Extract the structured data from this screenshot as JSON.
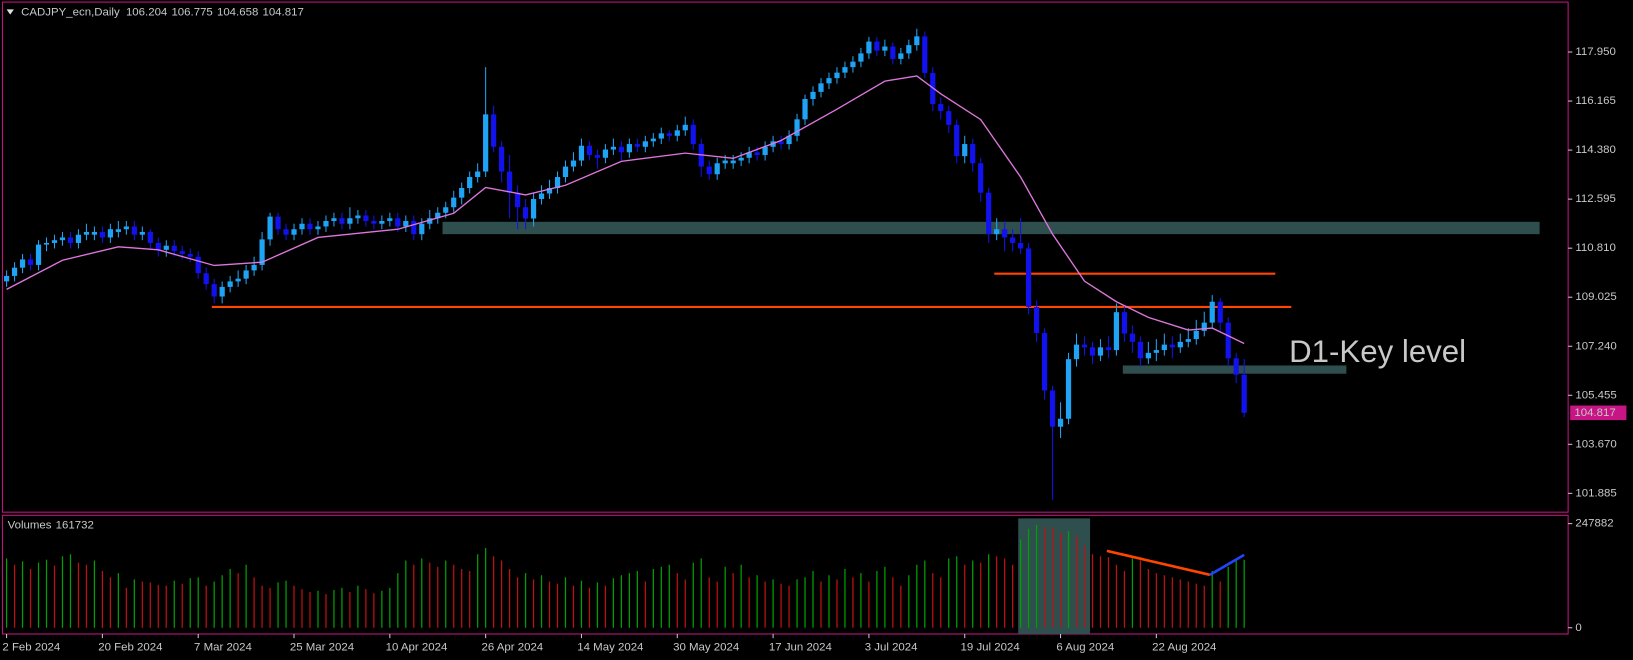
{
  "chart_data": {
    "type": "candlestick",
    "title": "CADJPY_ecn,Daily",
    "volume_title": "Volumes",
    "annotation": "D1-Key level",
    "up_color": "#1fa3f5",
    "down_color": "#1212ee",
    "ma_color": "#dd77dd",
    "zone_color": "#2f4f4f",
    "line_color": "#ff4500",
    "trend_up_color": "#2244ff",
    "volume_up_color": "#00a000",
    "volume_down_color": "#c01010",
    "annotation_color": "#ffff00",
    "border_color": "#c71585",
    "xlim": [
      -0.52,
      195.57
    ],
    "ylim": [
      101.2,
      119.73
    ],
    "yticks": [
      {
        "value": 117.95,
        "label": "117.950"
      },
      {
        "value": 116.165,
        "label": "116.165"
      },
      {
        "value": 114.38,
        "label": "114.380"
      },
      {
        "value": 112.595,
        "label": "112.595"
      },
      {
        "value": 110.81,
        "label": "110.810"
      },
      {
        "value": 109.025,
        "label": "109.025"
      },
      {
        "value": 107.24,
        "label": "107.240"
      },
      {
        "value": 105.455,
        "label": "105.455"
      },
      {
        "value": 103.67,
        "label": "103.670"
      },
      {
        "value": 101.885,
        "label": "101.885"
      }
    ],
    "xticks": [
      {
        "value": 0,
        "label": "2 Feb 2024"
      },
      {
        "value": 12,
        "label": "20 Feb 2024"
      },
      {
        "value": 24,
        "label": "7 Mar 2024"
      },
      {
        "value": 36,
        "label": "25 Mar 2024"
      },
      {
        "value": 48,
        "label": "10 Apr 2024"
      },
      {
        "value": 60,
        "label": "26 Apr 2024"
      },
      {
        "value": 72,
        "label": "14 May 2024"
      },
      {
        "value": 84,
        "label": "30 May 2024"
      },
      {
        "value": 96,
        "label": "17 Jun 2024"
      },
      {
        "value": 108,
        "label": "3 Jul 2024"
      },
      {
        "value": 120,
        "label": "19 Jul 2024"
      },
      {
        "value": 132,
        "label": "6 Aug 2024"
      },
      {
        "value": 144,
        "label": "22 Aug 2024"
      }
    ],
    "ohlc": [
      [
        109.6,
        110.0,
        109.4,
        109.8
      ],
      [
        109.8,
        110.3,
        109.6,
        110.1
      ],
      [
        110.1,
        110.6,
        109.9,
        110.4
      ],
      [
        110.4,
        110.6,
        110.0,
        110.2
      ],
      [
        110.2,
        111.1,
        110.0,
        110.94
      ],
      [
        110.94,
        111.2,
        110.7,
        111.0
      ],
      [
        111.0,
        111.3,
        110.8,
        111.1
      ],
      [
        111.1,
        111.4,
        110.9,
        111.2
      ],
      [
        111.2,
        111.4,
        110.8,
        111.0
      ],
      [
        111.0,
        111.5,
        110.8,
        111.3
      ],
      [
        111.3,
        111.7,
        111.1,
        111.4
      ],
      [
        111.3,
        111.6,
        111.1,
        111.4
      ],
      [
        111.4,
        111.6,
        111.0,
        111.2
      ],
      [
        111.2,
        111.7,
        111.0,
        111.5
      ],
      [
        111.4,
        111.8,
        111.2,
        111.5
      ],
      [
        111.5,
        111.8,
        111.3,
        111.6
      ],
      [
        111.6,
        111.8,
        111.1,
        111.3
      ],
      [
        111.3,
        111.6,
        111.1,
        111.4
      ],
      [
        111.4,
        111.5,
        110.8,
        111.0
      ],
      [
        111.0,
        111.2,
        110.5,
        110.75
      ],
      [
        110.75,
        111.1,
        110.5,
        110.9
      ],
      [
        110.9,
        111.1,
        110.5,
        110.7
      ],
      [
        110.7,
        110.9,
        110.4,
        110.6
      ],
      [
        110.6,
        110.8,
        110.3,
        110.5
      ],
      [
        110.5,
        110.7,
        109.7,
        109.9
      ],
      [
        109.9,
        110.1,
        109.3,
        109.5
      ],
      [
        109.5,
        109.7,
        108.8,
        109.05
      ],
      [
        109.05,
        109.6,
        108.8,
        109.4
      ],
      [
        109.4,
        109.8,
        109.2,
        109.6
      ],
      [
        109.6,
        110.0,
        109.4,
        109.7
      ],
      [
        109.7,
        110.2,
        109.5,
        110.0
      ],
      [
        110.0,
        110.5,
        109.8,
        110.2
      ],
      [
        110.2,
        111.4,
        110.0,
        111.13
      ],
      [
        111.13,
        112.1,
        110.9,
        111.96
      ],
      [
        111.96,
        112.1,
        111.3,
        111.5
      ],
      [
        111.5,
        111.7,
        111.1,
        111.3
      ],
      [
        111.3,
        111.7,
        111.1,
        111.5
      ],
      [
        111.5,
        111.9,
        111.3,
        111.7
      ],
      [
        111.7,
        111.9,
        111.3,
        111.5
      ],
      [
        111.5,
        111.8,
        111.3,
        111.6
      ],
      [
        111.6,
        112.0,
        111.4,
        111.8
      ],
      [
        111.8,
        112.1,
        111.6,
        111.9
      ],
      [
        111.9,
        112.1,
        111.5,
        111.7
      ],
      [
        111.7,
        112.3,
        111.5,
        111.9
      ],
      [
        111.9,
        112.2,
        111.7,
        112.0
      ],
      [
        112.0,
        112.2,
        111.6,
        111.8
      ],
      [
        111.8,
        112.0,
        111.5,
        111.7
      ],
      [
        111.7,
        112.0,
        111.5,
        111.8
      ],
      [
        111.8,
        112.1,
        111.6,
        111.9
      ],
      [
        111.9,
        112.1,
        111.4,
        111.6
      ],
      [
        111.6,
        112.0,
        111.4,
        111.8
      ],
      [
        111.8,
        112.0,
        111.1,
        111.32
      ],
      [
        111.32,
        111.9,
        111.1,
        111.7
      ],
      [
        111.7,
        112.2,
        111.5,
        111.9
      ],
      [
        111.9,
        112.3,
        111.7,
        112.1
      ],
      [
        112.1,
        112.5,
        111.9,
        112.3
      ],
      [
        112.3,
        112.9,
        112.1,
        112.65
      ],
      [
        112.65,
        113.2,
        112.4,
        113.0
      ],
      [
        113.0,
        113.6,
        112.8,
        113.4
      ],
      [
        113.4,
        113.9,
        113.2,
        113.6
      ],
      [
        113.6,
        117.4,
        113.4,
        115.68
      ],
      [
        115.68,
        116.0,
        114.3,
        114.5
      ],
      [
        114.5,
        114.7,
        113.2,
        113.6
      ],
      [
        113.6,
        114.2,
        111.9,
        112.83
      ],
      [
        112.83,
        113.1,
        111.5,
        112.3
      ],
      [
        112.3,
        112.6,
        111.5,
        111.89
      ],
      [
        111.89,
        112.8,
        111.6,
        112.6
      ],
      [
        112.6,
        113.1,
        112.4,
        112.8
      ],
      [
        112.8,
        113.3,
        112.6,
        113.0
      ],
      [
        113.0,
        113.6,
        112.8,
        113.4
      ],
      [
        113.4,
        114.0,
        113.2,
        113.78
      ],
      [
        113.78,
        114.3,
        113.6,
        114.0
      ],
      [
        114.0,
        114.8,
        113.8,
        114.54
      ],
      [
        114.54,
        114.7,
        114.0,
        114.2
      ],
      [
        114.2,
        114.4,
        113.7,
        114.1
      ],
      [
        114.1,
        114.6,
        113.9,
        114.4
      ],
      [
        114.4,
        114.8,
        114.2,
        114.5
      ],
      [
        114.5,
        114.7,
        114.0,
        114.3
      ],
      [
        114.3,
        114.8,
        114.1,
        114.6
      ],
      [
        114.6,
        114.8,
        114.3,
        114.5
      ],
      [
        114.5,
        114.9,
        114.3,
        114.7
      ],
      [
        114.7,
        115.0,
        114.5,
        114.8
      ],
      [
        114.8,
        115.2,
        114.6,
        114.99
      ],
      [
        114.99,
        115.1,
        114.7,
        114.9
      ],
      [
        114.9,
        115.3,
        114.7,
        115.1
      ],
      [
        115.1,
        115.6,
        114.9,
        115.3
      ],
      [
        115.3,
        115.5,
        114.4,
        114.6
      ],
      [
        114.6,
        114.8,
        113.4,
        113.78
      ],
      [
        113.78,
        114.0,
        113.3,
        113.5
      ],
      [
        113.5,
        114.1,
        113.3,
        113.9
      ],
      [
        113.9,
        114.2,
        113.7,
        114.0
      ],
      [
        113.9,
        114.2,
        113.7,
        114.0
      ],
      [
        114.0,
        114.3,
        113.8,
        114.1
      ],
      [
        114.1,
        114.5,
        113.9,
        114.3
      ],
      [
        114.3,
        114.5,
        114.0,
        114.2
      ],
      [
        114.2,
        114.7,
        114.0,
        114.5
      ],
      [
        114.5,
        114.9,
        114.3,
        114.7
      ],
      [
        114.7,
        114.9,
        114.4,
        114.6
      ],
      [
        114.6,
        115.1,
        114.4,
        114.9
      ],
      [
        114.9,
        115.7,
        114.7,
        115.5
      ],
      [
        115.5,
        116.4,
        115.3,
        116.24
      ],
      [
        116.24,
        116.7,
        116.0,
        116.5
      ],
      [
        116.5,
        117.0,
        116.3,
        116.81
      ],
      [
        116.81,
        117.2,
        116.6,
        117.0
      ],
      [
        117.0,
        117.4,
        116.8,
        117.2
      ],
      [
        117.2,
        117.6,
        117.0,
        117.4
      ],
      [
        117.4,
        117.8,
        117.2,
        117.6
      ],
      [
        117.6,
        118.1,
        117.4,
        117.9
      ],
      [
        117.9,
        118.5,
        117.7,
        118.33
      ],
      [
        118.33,
        118.5,
        117.8,
        118.0
      ],
      [
        118.0,
        118.4,
        117.8,
        118.15
      ],
      [
        118.15,
        118.3,
        117.5,
        117.7
      ],
      [
        117.7,
        118.1,
        117.5,
        117.9
      ],
      [
        117.9,
        118.4,
        117.7,
        118.2
      ],
      [
        118.2,
        118.8,
        118.0,
        118.52
      ],
      [
        118.52,
        118.7,
        117.0,
        117.19
      ],
      [
        117.19,
        117.4,
        115.8,
        116.06
      ],
      [
        116.06,
        116.3,
        115.5,
        115.8
      ],
      [
        115.8,
        116.0,
        115.0,
        115.3
      ],
      [
        115.3,
        115.5,
        113.9,
        114.16
      ],
      [
        114.16,
        114.9,
        113.9,
        114.6
      ],
      [
        114.6,
        114.8,
        113.6,
        113.9
      ],
      [
        113.9,
        114.1,
        112.5,
        112.83
      ],
      [
        112.83,
        113.0,
        111.0,
        111.32
      ],
      [
        111.32,
        111.9,
        111.1,
        111.5
      ],
      [
        111.5,
        111.8,
        110.7,
        111.2
      ],
      [
        111.2,
        111.5,
        110.7,
        111.0
      ],
      [
        111.0,
        111.9,
        110.6,
        110.8
      ],
      [
        110.8,
        111.0,
        108.4,
        108.67
      ],
      [
        108.67,
        108.9,
        107.4,
        107.72
      ],
      [
        107.72,
        107.9,
        105.3,
        105.63
      ],
      [
        105.63,
        105.8,
        101.65,
        104.31
      ],
      [
        104.31,
        105.2,
        103.9,
        104.6
      ],
      [
        104.6,
        107.0,
        104.4,
        106.77
      ],
      [
        106.77,
        107.7,
        106.5,
        107.3
      ],
      [
        107.3,
        107.6,
        106.9,
        107.2
      ],
      [
        107.2,
        107.4,
        106.6,
        106.9
      ],
      [
        106.9,
        107.5,
        106.7,
        107.2
      ],
      [
        107.2,
        107.6,
        106.8,
        107.1
      ],
      [
        107.1,
        108.8,
        106.9,
        108.48
      ],
      [
        108.48,
        108.7,
        107.4,
        107.7
      ],
      [
        107.7,
        108.0,
        107.0,
        107.4
      ],
      [
        107.4,
        107.6,
        106.5,
        106.8
      ],
      [
        106.8,
        107.4,
        106.6,
        107.0
      ],
      [
        107.0,
        107.5,
        106.7,
        107.1
      ],
      [
        107.1,
        107.7,
        106.9,
        107.3
      ],
      [
        107.3,
        107.6,
        106.8,
        107.2
      ],
      [
        107.2,
        107.7,
        107.0,
        107.4
      ],
      [
        107.4,
        107.9,
        107.2,
        107.5
      ],
      [
        107.5,
        108.2,
        107.3,
        107.8
      ],
      [
        107.8,
        108.5,
        107.6,
        108.1
      ],
      [
        108.1,
        109.1,
        107.9,
        108.86
      ],
      [
        108.86,
        109.0,
        107.8,
        108.1
      ],
      [
        108.1,
        108.3,
        106.5,
        106.8
      ],
      [
        106.8,
        107.0,
        105.9,
        106.204
      ],
      [
        106.204,
        106.775,
        104.658,
        104.817
      ]
    ],
    "ma": {
      "x": [
        0,
        7,
        14,
        19,
        26,
        32,
        39,
        49,
        56,
        60,
        65,
        70,
        77,
        85,
        91,
        97,
        104,
        110,
        114,
        117,
        122,
        127,
        131,
        135,
        139,
        143,
        148,
        151,
        155
      ],
      "values": [
        109.31,
        110.37,
        110.86,
        110.75,
        110.18,
        110.3,
        111.2,
        111.5,
        112.08,
        113.02,
        112.75,
        113.1,
        113.97,
        114.27,
        114.08,
        114.73,
        115.87,
        116.89,
        117.08,
        116.43,
        115.49,
        113.4,
        111.32,
        109.61,
        108.86,
        108.29,
        107.83,
        107.9,
        107.34
      ]
    },
    "zones": [
      {
        "from": 111.32,
        "to": 111.77,
        "start": 54.6,
        "end": 192
      },
      {
        "from": 106.24,
        "to": 106.54,
        "start": 139.8,
        "end": 167.8
      }
    ],
    "levels": [
      {
        "value": 109.88,
        "start": 123.7,
        "end": 158.9
      },
      {
        "value": 108.67,
        "start": 25.7,
        "end": 160.9
      }
    ],
    "volume_ylim": [
      0,
      247882
    ],
    "volume_yticks": [
      247882,
      0
    ],
    "volumes": [
      165000,
      150000,
      158000,
      140000,
      155000,
      162000,
      148000,
      170000,
      175000,
      155000,
      150000,
      160000,
      135000,
      120000,
      130000,
      95000,
      115000,
      110000,
      108000,
      102000,
      100000,
      112000,
      105000,
      118000,
      120000,
      100000,
      110000,
      125000,
      140000,
      130000,
      150000,
      120000,
      100000,
      95000,
      108000,
      112000,
      100000,
      92000,
      85000,
      88000,
      80000,
      90000,
      95000,
      85000,
      100000,
      92000,
      82000,
      88000,
      95000,
      130000,
      160000,
      150000,
      165000,
      155000,
      145000,
      160000,
      150000,
      140000,
      135000,
      175000,
      190000,
      170000,
      160000,
      140000,
      120000,
      130000,
      115000,
      125000,
      110000,
      105000,
      120000,
      100000,
      112000,
      95000,
      108000,
      100000,
      118000,
      125000,
      130000,
      135000,
      110000,
      140000,
      145000,
      150000,
      130000,
      115000,
      155000,
      165000,
      120000,
      110000,
      145000,
      130000,
      150000,
      120000,
      125000,
      110000,
      115000,
      105000,
      100000,
      115000,
      120000,
      135000,
      110000,
      125000,
      115000,
      140000,
      120000,
      130000,
      110000,
      135000,
      145000,
      120000,
      100000,
      125000,
      150000,
      160000,
      130000,
      120000,
      165000,
      170000,
      150000,
      160000,
      155000,
      175000,
      170000,
      165000,
      150000,
      210000,
      235000,
      245000,
      240000,
      238000,
      225000,
      230000,
      220000,
      195000,
      175000,
      170000,
      168000,
      150000,
      135000,
      165000,
      160000,
      140000,
      130000,
      125000,
      120000,
      115000,
      110000,
      105000,
      100000,
      135000,
      110000,
      145000,
      160000,
      161732
    ],
    "volume_zone": {
      "start": 126.7,
      "end": 135.7
    },
    "volume_trends": [
      {
        "x": [
          137.8,
          150.7
        ],
        "values": [
          183000,
          126000
        ]
      },
      {
        "x": [
          150.7,
          155
        ],
        "values": [
          126000,
          173500
        ]
      }
    ]
  }
}
